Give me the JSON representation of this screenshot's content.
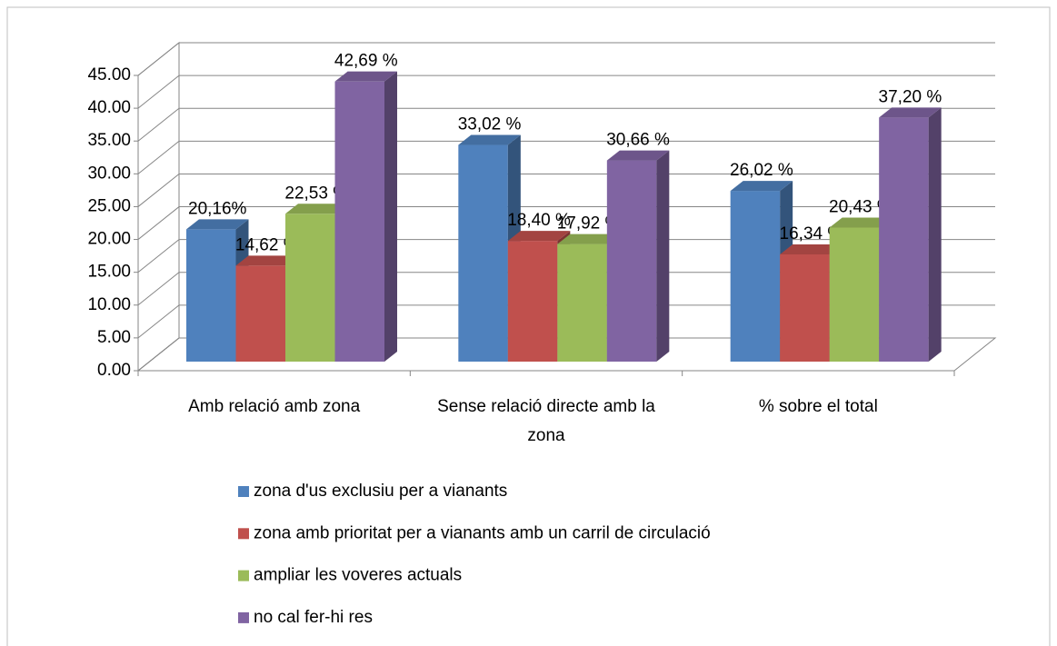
{
  "chart_data": {
    "type": "bar3d",
    "categories": [
      "Amb relació amb  zona",
      "Sense relació directe amb la zona",
      "% sobre el total"
    ],
    "series": [
      {
        "name": "zona d'us exclusiu per a vianants",
        "color": "#4f81bd",
        "values": [
          20.16,
          33.02,
          26.02
        ],
        "value_labels": [
          "20,16%",
          "33,02 %",
          "26,02 %"
        ]
      },
      {
        "name": "zona amb prioritat per a vianants amb un carril de circulació",
        "color": "#c0504d",
        "values": [
          14.62,
          18.4,
          16.34
        ],
        "value_labels": [
          "14,62 %",
          "18,40 %",
          "16,34 %"
        ]
      },
      {
        "name": "ampliar les voveres actuals",
        "color": "#9bbb59",
        "values": [
          22.53,
          17.92,
          20.43
        ],
        "value_labels": [
          "22,53 %",
          "17,92 %",
          "20,43 %"
        ]
      },
      {
        "name": "no cal fer-hi res",
        "color": "#8064a2",
        "values": [
          42.69,
          30.66,
          37.2
        ],
        "value_labels": [
          "42,69 %",
          "30,66 %",
          "37,20 %"
        ]
      }
    ],
    "ylim": [
      0,
      45
    ],
    "yticks": [
      {
        "value": 0,
        "label": "0.00"
      },
      {
        "value": 5,
        "label": "5.00"
      },
      {
        "value": 10,
        "label": "10.00"
      },
      {
        "value": 15,
        "label": "15.00"
      },
      {
        "value": 20,
        "label": "20.00"
      },
      {
        "value": 25,
        "label": "25.00"
      },
      {
        "value": 30,
        "label": "30.00"
      },
      {
        "value": 35,
        "label": "35.00"
      },
      {
        "value": 40,
        "label": "40.00"
      },
      {
        "value": 45,
        "label": "45.00"
      }
    ],
    "grid": true,
    "legend": "bottom"
  }
}
